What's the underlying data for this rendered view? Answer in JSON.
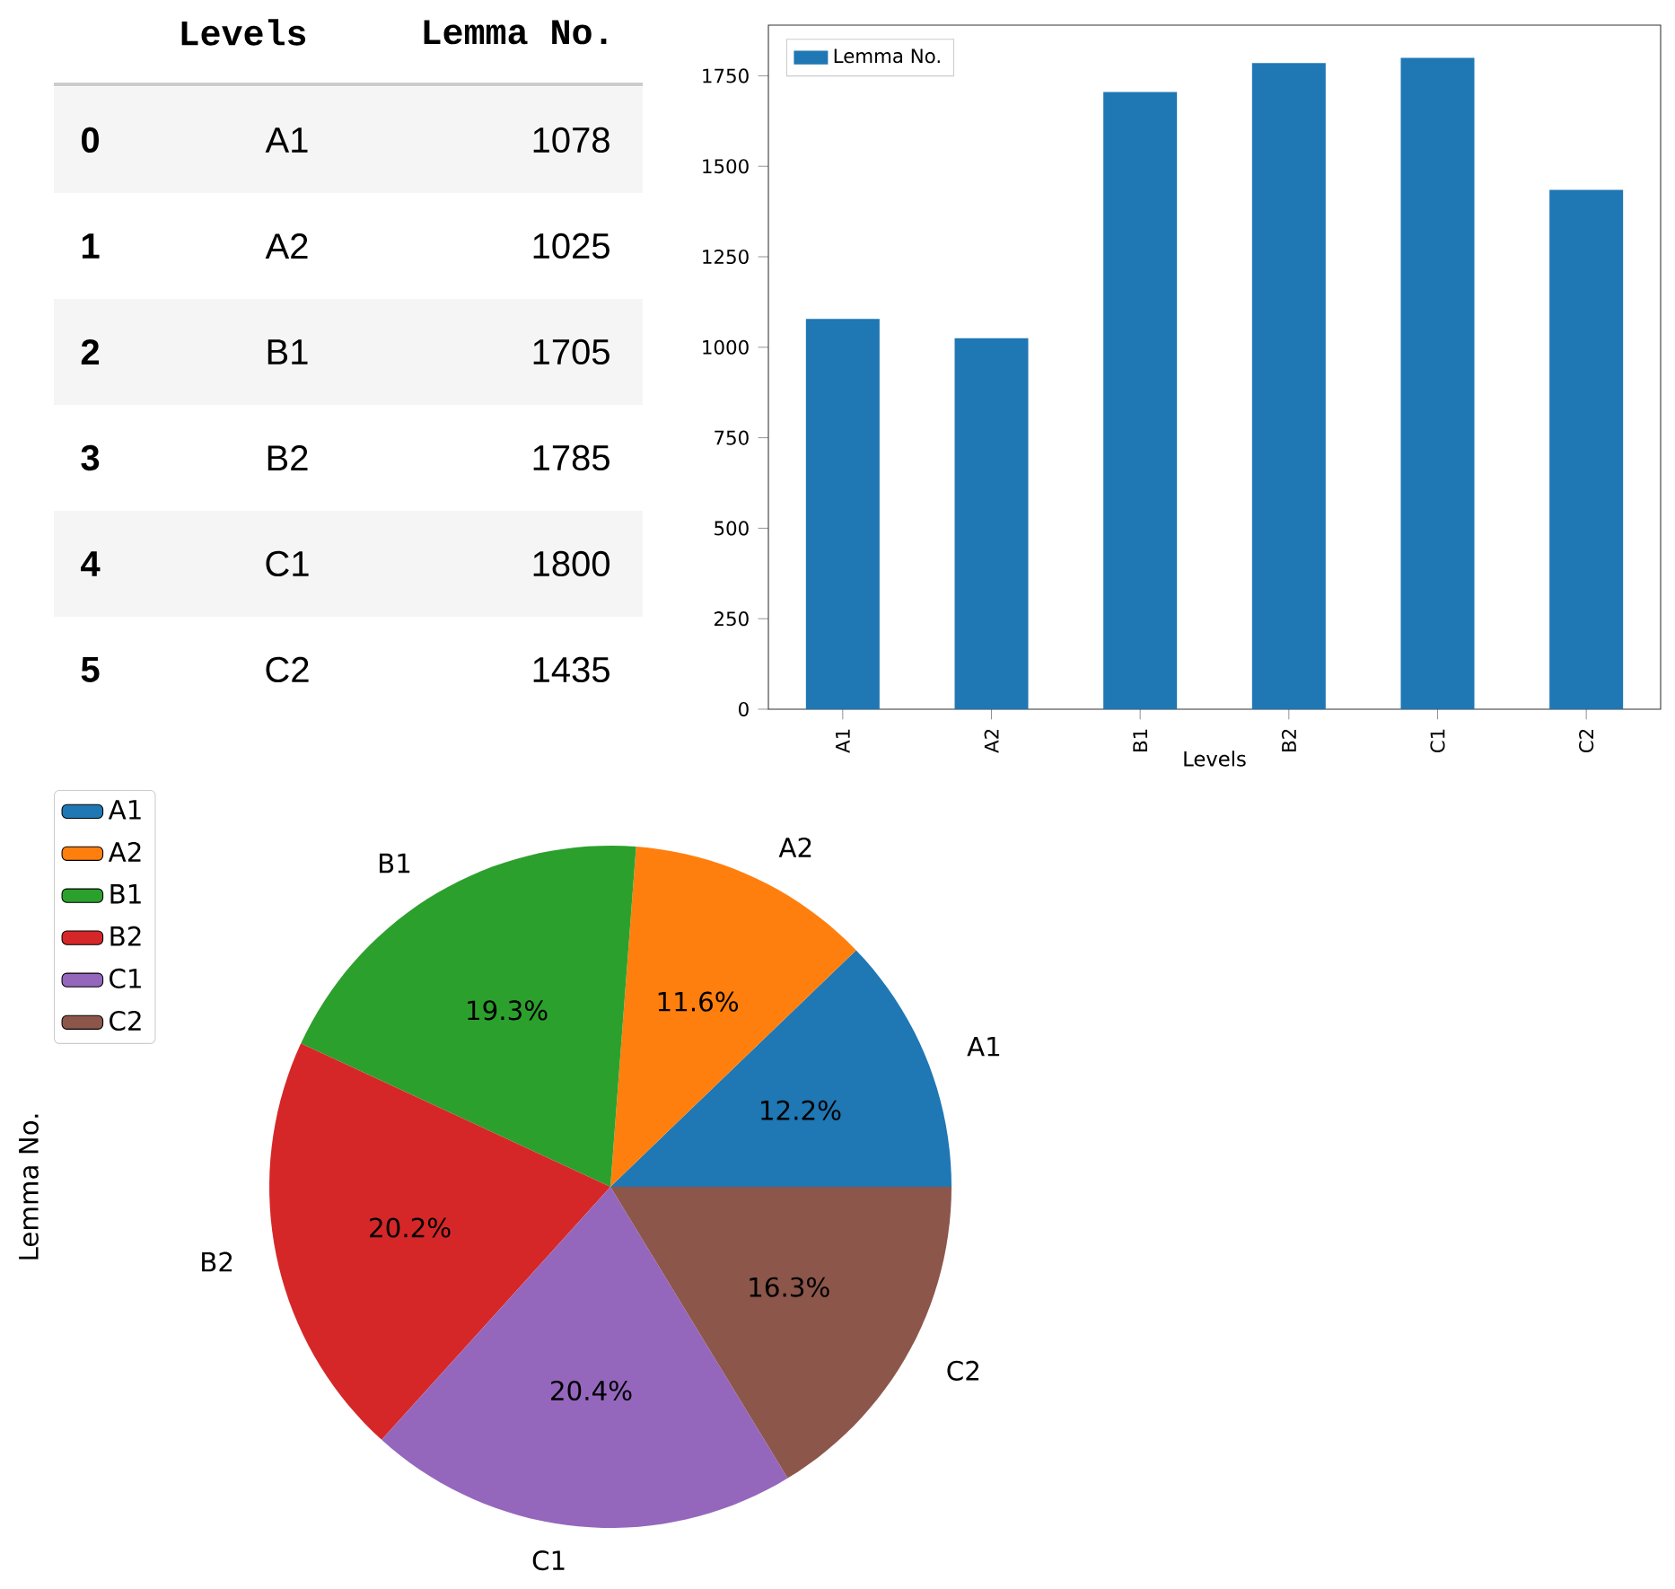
{
  "chart_data": [
    {
      "type": "heatmap",
      "y2label": "Levels",
      "categories": [
        "Lemma No."
      ],
      "y_categories": [
        "0",
        "1",
        "2",
        "3",
        "4",
        "5"
      ],
      "y2_categories": [
        "A1",
        "A2",
        "B1",
        "B2",
        "C1",
        "C2"
      ],
      "cells": [
        [
          1078
        ],
        [
          1025
        ],
        [
          1705
        ],
        [
          1785
        ],
        [
          1800
        ],
        [
          1435
        ]
      ],
      "data_labels": true
    },
    {
      "type": "bar",
      "xlabel": "Levels",
      "categories": [
        "A1",
        "A2",
        "B1",
        "B2",
        "C1",
        "C2"
      ],
      "series": [
        {
          "name": "Lemma No.",
          "color": "#1f77b4",
          "values": [
            1078,
            1025,
            1705,
            1785,
            1800,
            1435
          ]
        }
      ],
      "ylim": [
        0,
        1890
      ],
      "yticks": [
        0,
        250,
        500,
        750,
        1000,
        1250,
        1500,
        1750
      ],
      "legend": "top left"
    },
    {
      "type": "pie",
      "ylabel": "Lemma No.",
      "categories": [
        "A1",
        "A2",
        "B1",
        "B2",
        "C1",
        "C2"
      ],
      "values": [
        12.2,
        11.6,
        19.3,
        20.2,
        20.4,
        16.3
      ],
      "colors": [
        "#1f77b4",
        "#ff7f0e",
        "#2ca02c",
        "#d62728",
        "#9467bd",
        "#8c564b"
      ],
      "value_labels": [
        "12.2%",
        "11.6%",
        "19.3%",
        "20.2%",
        "20.4%",
        "16.3%"
      ],
      "legend": "top left"
    }
  ]
}
